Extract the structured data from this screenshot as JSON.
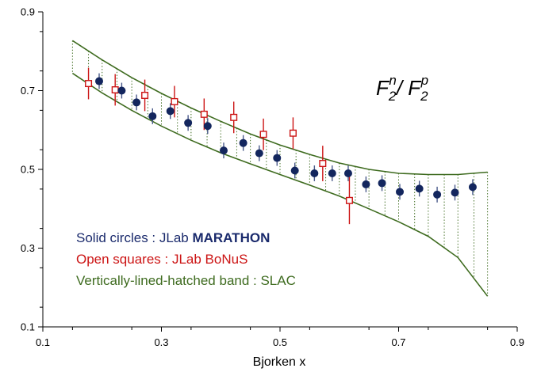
{
  "chart_data": {
    "type": "scatter",
    "title": "",
    "annotation": {
      "f_letter": "F",
      "subscript": "2",
      "n_super": "n",
      "slash": "/ ",
      "p_super": "p"
    },
    "xlabel": "Bjorken x",
    "ylabel": "",
    "xlim": [
      0.1,
      0.9
    ],
    "ylim": [
      0.1,
      0.9
    ],
    "x_ticks": [
      0.1,
      0.3,
      0.5,
      0.7,
      0.9
    ],
    "y_ticks": [
      0.1,
      0.3,
      0.5,
      0.7,
      0.9
    ],
    "x_tick_labels": [
      "0.1",
      "0.3",
      "0.5",
      "0.7",
      "0.9"
    ],
    "y_tick_labels": [
      "0.1",
      "0.3",
      "0.5",
      "0.7",
      "0.9"
    ],
    "grid": false,
    "legend": {
      "position": "bottom-left",
      "entries": [
        {
          "prefix": "Solid circles : JLab ",
          "bold": "MARATHON",
          "color": "#1a2a6c"
        },
        {
          "prefix": "Open squares : JLab BoNuS",
          "bold": "",
          "color": "#cc1414"
        },
        {
          "prefix": "Vertically-lined-hatched band : SLAC",
          "bold": "",
          "color": "#3e6b1f"
        }
      ]
    },
    "series": [
      {
        "marker": "filled-circle",
        "color": "#13265e",
        "errorbar_color": "#4a5a8a",
        "points": [
          {
            "x": 0.195,
            "y": 0.724,
            "err": 0.02
          },
          {
            "x": 0.233,
            "y": 0.7,
            "err": 0.02
          },
          {
            "x": 0.258,
            "y": 0.67,
            "err": 0.02
          },
          {
            "x": 0.285,
            "y": 0.635,
            "err": 0.02
          },
          {
            "x": 0.315,
            "y": 0.648,
            "err": 0.02
          },
          {
            "x": 0.345,
            "y": 0.618,
            "err": 0.02
          },
          {
            "x": 0.378,
            "y": 0.61,
            "err": 0.02
          },
          {
            "x": 0.405,
            "y": 0.548,
            "err": 0.02
          },
          {
            "x": 0.438,
            "y": 0.567,
            "err": 0.02
          },
          {
            "x": 0.465,
            "y": 0.541,
            "err": 0.02
          },
          {
            "x": 0.495,
            "y": 0.529,
            "err": 0.02
          },
          {
            "x": 0.525,
            "y": 0.497,
            "err": 0.02
          },
          {
            "x": 0.558,
            "y": 0.49,
            "err": 0.02
          },
          {
            "x": 0.588,
            "y": 0.49,
            "err": 0.02
          },
          {
            "x": 0.615,
            "y": 0.49,
            "err": 0.02
          },
          {
            "x": 0.645,
            "y": 0.462,
            "err": 0.02
          },
          {
            "x": 0.672,
            "y": 0.465,
            "err": 0.02
          },
          {
            "x": 0.702,
            "y": 0.443,
            "err": 0.02
          },
          {
            "x": 0.735,
            "y": 0.451,
            "err": 0.02
          },
          {
            "x": 0.765,
            "y": 0.436,
            "err": 0.02
          },
          {
            "x": 0.795,
            "y": 0.441,
            "err": 0.02
          },
          {
            "x": 0.825,
            "y": 0.455,
            "err": 0.02
          }
        ]
      },
      {
        "marker": "open-square",
        "color": "#cc1414",
        "errorbar_color": "#cc1414",
        "points": [
          {
            "x": 0.177,
            "y": 0.718,
            "err": 0.04
          },
          {
            "x": 0.222,
            "y": 0.702,
            "err": 0.04
          },
          {
            "x": 0.272,
            "y": 0.688,
            "err": 0.04
          },
          {
            "x": 0.322,
            "y": 0.672,
            "err": 0.04
          },
          {
            "x": 0.372,
            "y": 0.64,
            "err": 0.04
          },
          {
            "x": 0.422,
            "y": 0.632,
            "err": 0.04
          },
          {
            "x": 0.472,
            "y": 0.589,
            "err": 0.04
          },
          {
            "x": 0.522,
            "y": 0.592,
            "err": 0.04
          },
          {
            "x": 0.572,
            "y": 0.515,
            "err": 0.045
          },
          {
            "x": 0.617,
            "y": 0.421,
            "err": 0.06
          }
        ]
      }
    ],
    "band": {
      "name": "SLAC",
      "color": "#3e6b1f",
      "x": [
        0.15,
        0.2,
        0.25,
        0.3,
        0.35,
        0.4,
        0.45,
        0.5,
        0.55,
        0.6,
        0.65,
        0.7,
        0.75,
        0.8,
        0.85
      ],
      "upper": [
        0.827,
        0.778,
        0.733,
        0.693,
        0.656,
        0.622,
        0.59,
        0.562,
        0.538,
        0.516,
        0.5,
        0.49,
        0.487,
        0.487,
        0.493
      ],
      "lower": [
        0.744,
        0.694,
        0.65,
        0.61,
        0.574,
        0.542,
        0.514,
        0.487,
        0.46,
        0.432,
        0.4,
        0.367,
        0.33,
        0.276,
        0.178
      ],
      "hatch_x": [
        0.15,
        0.177,
        0.2,
        0.225,
        0.25,
        0.277,
        0.3,
        0.327,
        0.35,
        0.377,
        0.4,
        0.427,
        0.45,
        0.477,
        0.5,
        0.527,
        0.55,
        0.577,
        0.6,
        0.627,
        0.65,
        0.677,
        0.7,
        0.727,
        0.75,
        0.777,
        0.8,
        0.827,
        0.85
      ]
    }
  }
}
